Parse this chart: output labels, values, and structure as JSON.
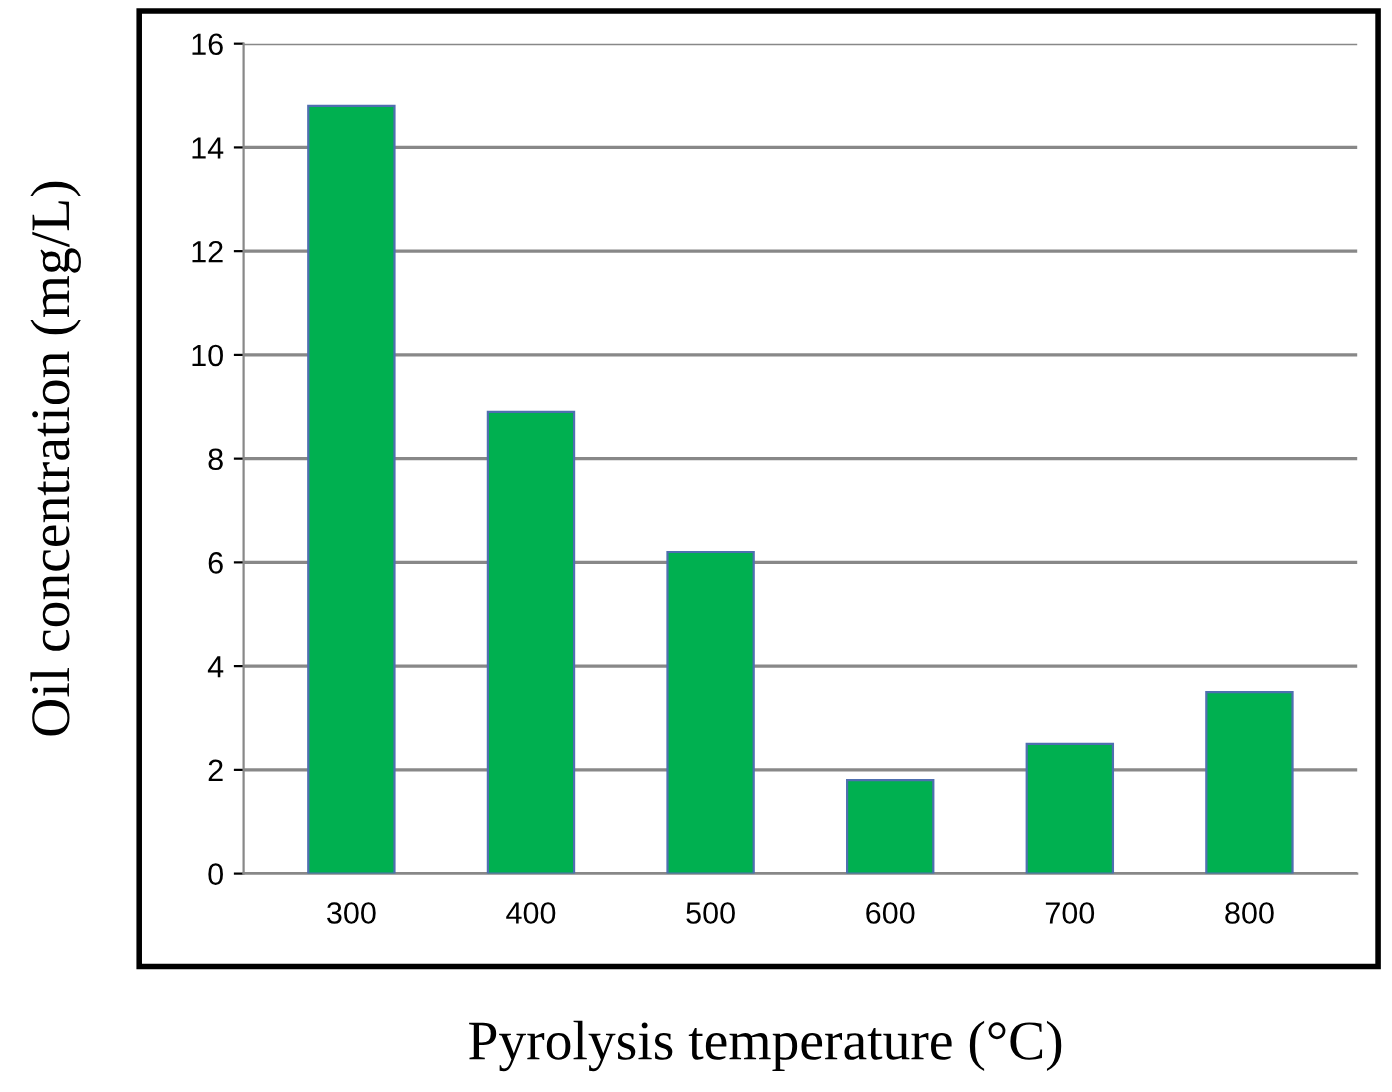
{
  "chart_data": {
    "type": "bar",
    "xlabel": "Pyrolysis temperature (°C)",
    "ylabel": "Oil concentration (mg/L)",
    "categories": [
      "300",
      "400",
      "500",
      "600",
      "700",
      "800"
    ],
    "values": [
      14.8,
      8.9,
      6.2,
      1.8,
      2.5,
      3.5
    ],
    "color": "#00b050",
    "ylim": [
      0,
      16
    ],
    "yticks": [
      0,
      2,
      4,
      6,
      8,
      10,
      12,
      14,
      16
    ],
    "grid": "y",
    "legend": false
  }
}
